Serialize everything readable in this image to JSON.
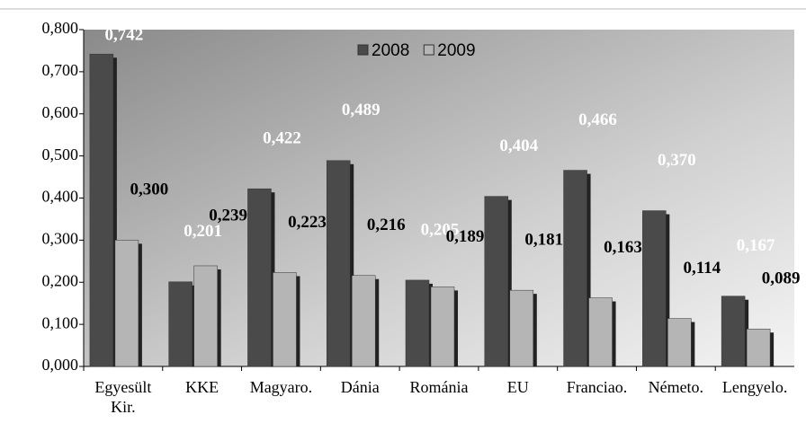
{
  "chart_data": {
    "type": "bar",
    "categories": [
      "Egyesült Kir.",
      "KKE",
      "Magyaro.",
      "Dánia",
      "Románia",
      "EU",
      "Franciao.",
      "Németo.",
      "Lengyelo."
    ],
    "series": [
      {
        "name": "2008",
        "color": "#4a4a4a",
        "values": [
          0.742,
          0.201,
          0.422,
          0.489,
          0.205,
          0.404,
          0.466,
          0.37,
          0.167
        ],
        "value_labels": [
          "0,742",
          "0,201",
          "0,422",
          "0,489",
          "0,205",
          "0,404",
          "0,466",
          "0,370",
          "0,167"
        ]
      },
      {
        "name": "2009",
        "color": "#b5b5b5",
        "values": [
          0.3,
          0.239,
          0.223,
          0.216,
          0.189,
          0.181,
          0.163,
          0.114,
          0.089
        ],
        "value_labels": [
          "0,300",
          "0,239",
          "0,223",
          "0,216",
          "0,189",
          "0,181",
          "0,163",
          "0,114",
          "0,089"
        ]
      }
    ],
    "ylim": [
      0,
      0.8
    ],
    "yticks": [
      {
        "value": 0,
        "label": "0,000"
      },
      {
        "value": 0.1,
        "label": "0,100"
      },
      {
        "value": 0.2,
        "label": "0,200"
      },
      {
        "value": 0.3,
        "label": "0,300"
      },
      {
        "value": 0.4,
        "label": "0,400"
      },
      {
        "value": 0.5,
        "label": "0,500"
      },
      {
        "value": 0.6,
        "label": "0,600"
      },
      {
        "value": 0.7,
        "label": "0,700"
      },
      {
        "value": 0.8,
        "label": "0,800"
      }
    ],
    "legend": "top"
  }
}
